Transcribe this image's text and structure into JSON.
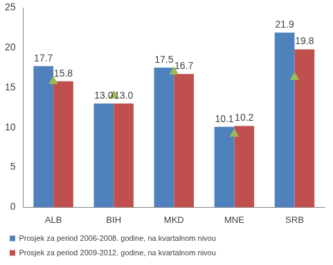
{
  "chart_data": {
    "type": "bar",
    "categories": [
      "ALB",
      "BIH",
      "MKD",
      "MNE",
      "SRB"
    ],
    "series": [
      {
        "name": "Prosjek za period 2006-2008. godine, na kvartalnom nivou",
        "color": "#4f81bd",
        "values": [
          17.7,
          13.0,
          17.5,
          10.1,
          21.9
        ],
        "value_labels": [
          "17.7",
          "13.0",
          "17.5",
          "10.1",
          "21.9"
        ],
        "data_labels": true
      },
      {
        "name": "Prosjek za period 2009-2012. godine, na kvartalnom nivou",
        "color": "#c0504d",
        "values": [
          15.8,
          13.0,
          16.7,
          10.2,
          19.8
        ],
        "value_labels": [
          "15.8",
          "13.0",
          "16.7",
          "10.2",
          "19.8"
        ],
        "data_labels": true
      },
      {
        "type": "scatter",
        "marker": "triangle",
        "color": "#9bbb59",
        "values": [
          15.8,
          14.0,
          17.0,
          9.2,
          16.3
        ]
      }
    ],
    "ylim": [
      0,
      25
    ],
    "yticks": [
      0,
      5,
      10,
      15,
      20,
      25
    ],
    "grid": false,
    "legend": "bottom"
  }
}
